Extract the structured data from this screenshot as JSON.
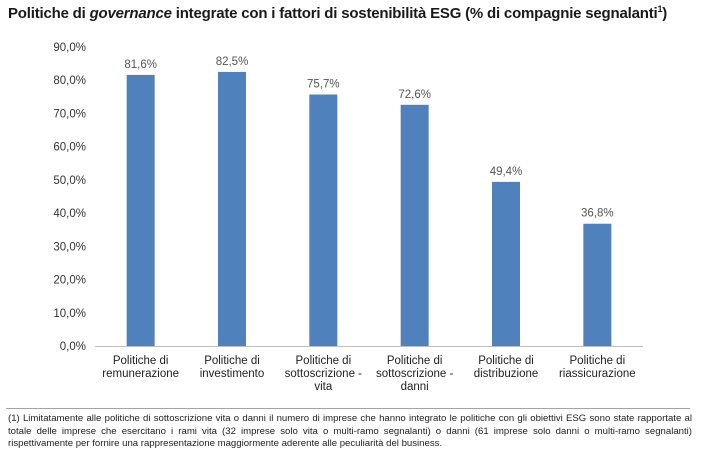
{
  "title": {
    "part1": "Politiche di ",
    "part2_italic": "governance",
    "part3": " integrate con i fattori di sostenibilità ESG (% di compagnie segnalanti",
    "sup": "1",
    "part4": ")"
  },
  "chart_data": {
    "type": "bar",
    "categories": [
      [
        "Politiche di",
        "remunerazione"
      ],
      [
        "Politiche di",
        "investimento"
      ],
      [
        "Politiche di",
        "sottoscrizione -",
        "vita"
      ],
      [
        "Politiche di",
        "sottoscrizione -",
        "danni"
      ],
      [
        "Politiche di",
        "distribuzione"
      ],
      [
        "Politiche di",
        "riassicurazione"
      ]
    ],
    "values": [
      81.6,
      82.5,
      75.7,
      72.6,
      49.4,
      36.8
    ],
    "value_labels": [
      "81,6%",
      "82,5%",
      "75,7%",
      "72,6%",
      "49,4%",
      "36,8%"
    ],
    "ylim": [
      0,
      90
    ],
    "yticks": [
      "0,0%",
      "10,0%",
      "20,0%",
      "30,0%",
      "40,0%",
      "50,0%",
      "60,0%",
      "70,0%",
      "80,0%",
      "90,0%"
    ],
    "grid": false,
    "bar_color": "#4f81bd"
  },
  "footnote": "(1) Limitatamente alle politiche di sottoscrizione vita o danni il numero di imprese che hanno integrato le politiche con gli obiettivi ESG sono state rapportate al totale delle imprese che esercitano i rami vita (32 imprese solo vita o multi-ramo segnalanti) o danni (61 imprese solo danni o multi-ramo segnalanti) rispettivamente per fornire una rappresentazione maggiormente aderente alle peculiarità del business."
}
